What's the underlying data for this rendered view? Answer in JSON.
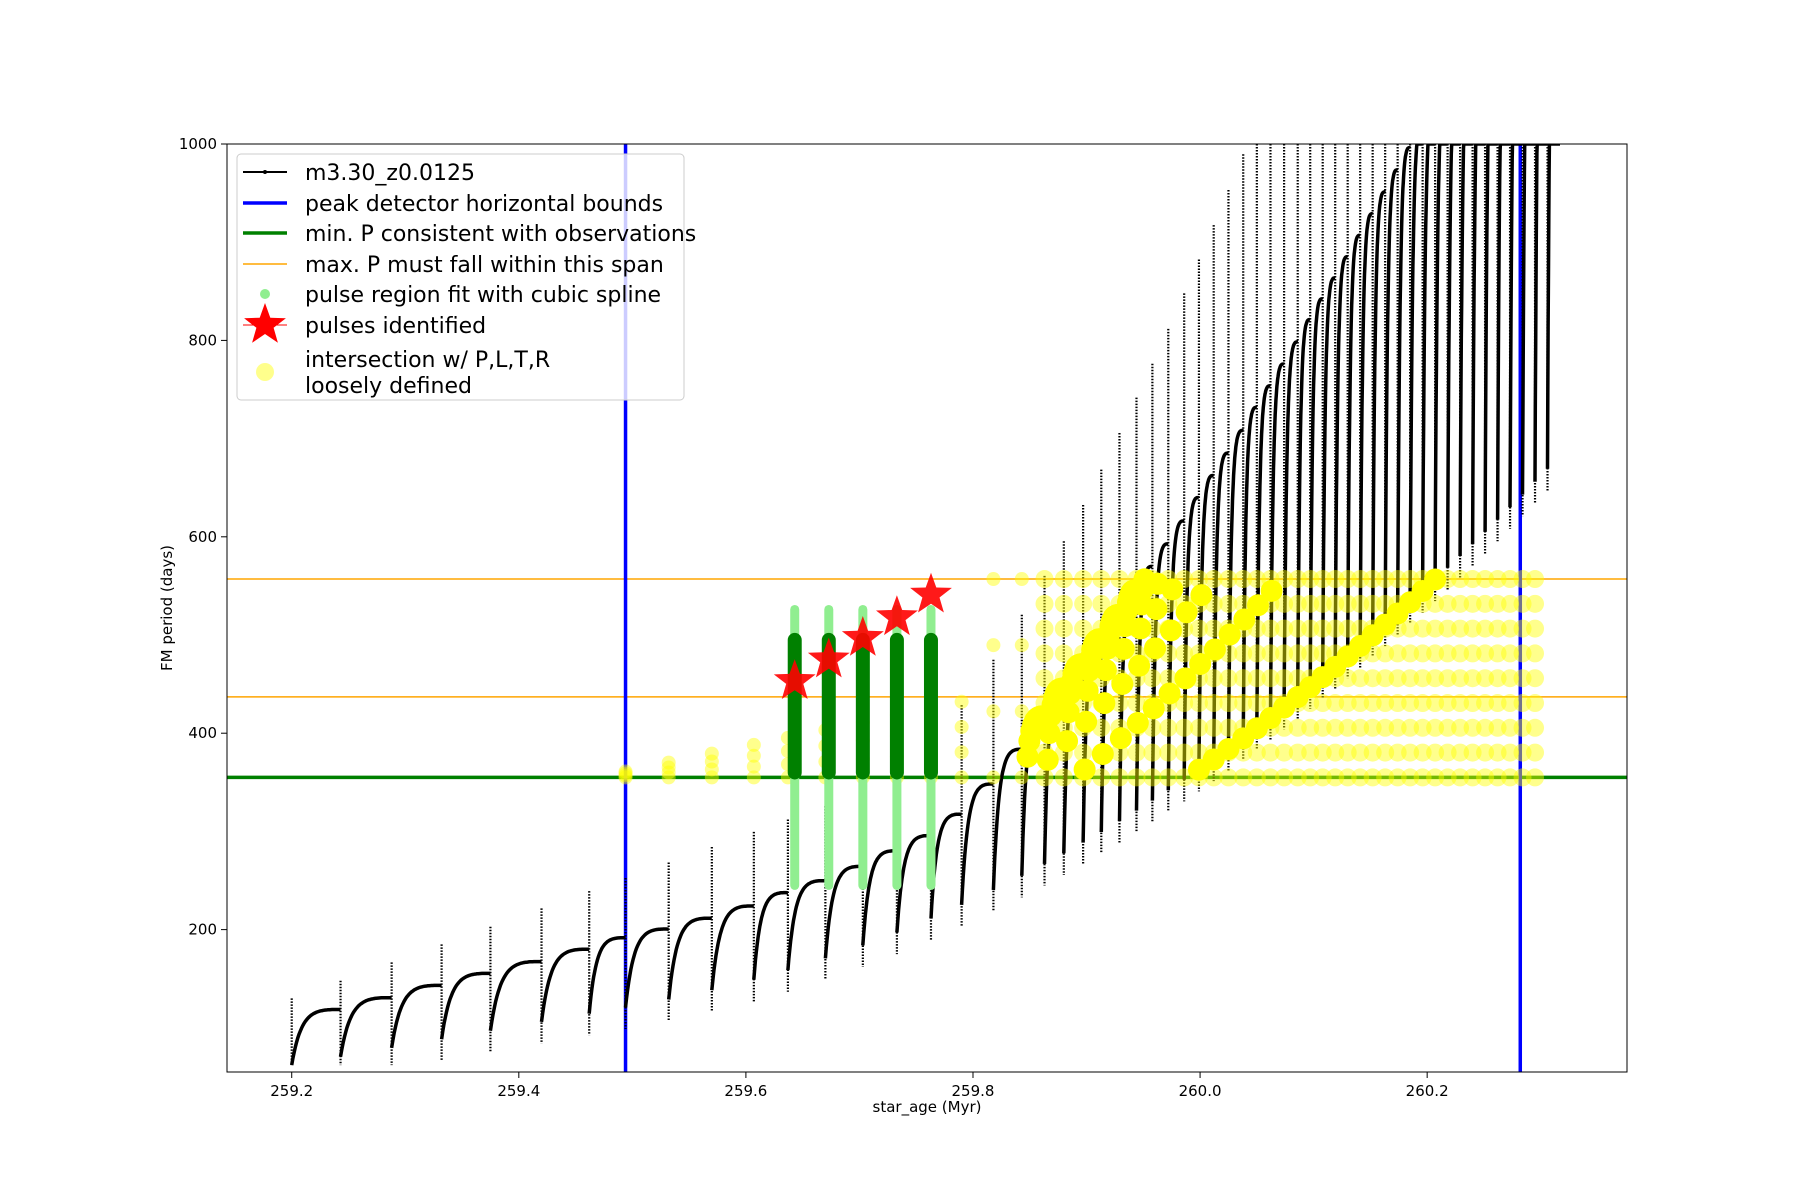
{
  "chart_data": {
    "type": "line",
    "xlabel": "star_age (Myr)",
    "ylabel": "FM period (days)",
    "xlim": [
      259.143,
      260.376
    ],
    "ylim": [
      55,
      1000
    ],
    "xticks": [
      "259.2",
      "259.4",
      "259.6",
      "259.8",
      "260.0",
      "260.2"
    ],
    "yticks": [
      "200",
      "400",
      "600",
      "800",
      "1000"
    ],
    "legend_position": "upper-left",
    "legend": [
      {
        "label": "m3.30_z0.0125",
        "style": "black-line-with-dots"
      },
      {
        "label": "peak detector horizontal bounds",
        "style": "blue-thick-line"
      },
      {
        "label": "min. P consistent with observations",
        "style": "green-thick-line"
      },
      {
        "label": "max. P must fall within this span",
        "style": "orange-thin-line"
      },
      {
        "label": "pulse region fit with cubic spline",
        "style": "lightgreen-dot"
      },
      {
        "label": "pulses identified",
        "style": "red-star"
      },
      {
        "label": "intersection w/ P,L,T,R\nloosely defined",
        "style": "yellow-circle"
      }
    ],
    "colors": {
      "model": "#000000",
      "bounds": "#0000ff",
      "min_p": "#008000",
      "max_p_span": "#ffa500",
      "spline": "#90ee90",
      "pulses": "#ff0000",
      "intersection": "#ffff00"
    },
    "peak_detector_bounds_x": [
      259.494,
      260.282
    ],
    "min_period": 355,
    "max_period_span": [
      437,
      557
    ],
    "pulse_ages": [
      259.2,
      259.243,
      259.288,
      259.332,
      259.375,
      259.42,
      259.462,
      259.494,
      259.532,
      259.57,
      259.607,
      259.637,
      259.67,
      259.703,
      259.733,
      259.763,
      259.79,
      259.818,
      259.843,
      259.863,
      259.88,
      259.897,
      259.913,
      259.929,
      259.944,
      259.958,
      259.972,
      259.986,
      259.999,
      260.012,
      260.025,
      260.038,
      260.05,
      260.062,
      260.074,
      260.086,
      260.097,
      260.108,
      260.119,
      260.13,
      260.141,
      260.152,
      260.163,
      260.174,
      260.185,
      260.196,
      260.207,
      260.218,
      260.229,
      260.24,
      260.251,
      260.262,
      260.273,
      260.284,
      260.295,
      260.306
    ],
    "pulses_identified": [
      {
        "x": 259.643,
        "y": 453
      },
      {
        "x": 259.673,
        "y": 475
      },
      {
        "x": 259.703,
        "y": 497
      },
      {
        "x": 259.733,
        "y": 518
      },
      {
        "x": 259.763,
        "y": 541
      }
    ]
  }
}
